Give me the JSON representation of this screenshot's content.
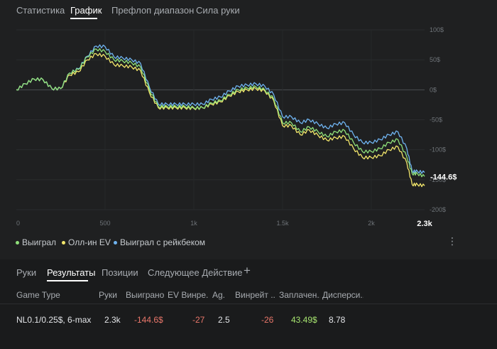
{
  "top_tabs": [
    "Статистика",
    "График",
    "Префлоп диапазон",
    "Сила руки"
  ],
  "active_top_tab": 1,
  "colors": {
    "won": "#8fe07a",
    "allin_ev": "#f2e66b",
    "won_rakeback": "#6fb3f0",
    "negative": "#e8766a",
    "positive": "#a6e36f"
  },
  "chart_data": {
    "type": "line",
    "x_ticks": [
      "0",
      "500",
      "1k",
      "1.5k",
      "2k",
      "2.3k"
    ],
    "y_ticks": [
      "100$",
      "50$",
      "0$",
      "-50$",
      "-100$",
      "-150$",
      "-200$"
    ],
    "xlim": [
      0,
      2300
    ],
    "ylim": [
      -200,
      100
    ],
    "end_label": "-144.6$",
    "x": [
      0,
      50,
      100,
      150,
      200,
      250,
      300,
      350,
      400,
      450,
      500,
      550,
      600,
      650,
      700,
      750,
      800,
      850,
      900,
      950,
      1000,
      1050,
      1100,
      1150,
      1200,
      1250,
      1300,
      1350,
      1400,
      1450,
      1500,
      1550,
      1600,
      1650,
      1700,
      1750,
      1800,
      1850,
      1900,
      1950,
      2000,
      2050,
      2100,
      2150,
      2200,
      2230,
      2260,
      2300
    ],
    "series": [
      {
        "name": "Выиграл",
        "values": [
          0,
          10,
          18,
          17,
          2,
          2,
          28,
          34,
          55,
          68,
          64,
          50,
          48,
          45,
          38,
          0,
          -28,
          -28,
          -28,
          -28,
          -30,
          -30,
          -22,
          -18,
          -8,
          0,
          3,
          5,
          0,
          -15,
          -55,
          -55,
          -70,
          -62,
          -70,
          -78,
          -70,
          -68,
          -88,
          -103,
          -103,
          -98,
          -88,
          -83,
          -112,
          -140,
          -140,
          -144.6
        ]
      },
      {
        "name": "Олл-ин EV",
        "values": [
          0,
          10,
          18,
          17,
          2,
          2,
          25,
          30,
          50,
          60,
          56,
          42,
          40,
          38,
          32,
          -5,
          -30,
          -30,
          -30,
          -30,
          -31,
          -30,
          -24,
          -20,
          -10,
          -3,
          0,
          2,
          -2,
          -18,
          -60,
          -60,
          -75,
          -67,
          -76,
          -84,
          -80,
          -78,
          -98,
          -113,
          -113,
          -110,
          -100,
          -95,
          -122,
          -158,
          -158,
          -160
        ]
      },
      {
        "name": "Выиграл с рейкбеком",
        "values": [
          0,
          10,
          18,
          17,
          2,
          2,
          28,
          35,
          56,
          73,
          72,
          55,
          53,
          50,
          44,
          4,
          -24,
          -24,
          -24,
          -24,
          -24,
          -24,
          -16,
          -12,
          -2,
          6,
          8,
          10,
          6,
          -8,
          -45,
          -45,
          -55,
          -50,
          -57,
          -64,
          -57,
          -55,
          -75,
          -88,
          -88,
          -83,
          -75,
          -70,
          -98,
          -136,
          -136,
          -138
        ]
      }
    ]
  },
  "legend": [
    "Выиграл",
    "Олл-ин EV",
    "Выиграл с рейкбеком"
  ],
  "more_icon": "more-vertical-icon",
  "bottom_tabs": [
    "Руки",
    "Результаты",
    "Позиции",
    "Следующее Действие"
  ],
  "active_bottom_tab": 1,
  "add_tab": "+",
  "columns": [
    "Game Type",
    "Руки",
    "Выиграно",
    "EV Винре...",
    "Ag.",
    "Винрейт ...",
    "Заплачен...",
    "Дисперси..."
  ],
  "row": [
    "NL0.1/0.25$, 6-max",
    "2.3k",
    "-144.6$",
    "-27",
    "2.5",
    "-26",
    "43.49$",
    "8.78"
  ]
}
